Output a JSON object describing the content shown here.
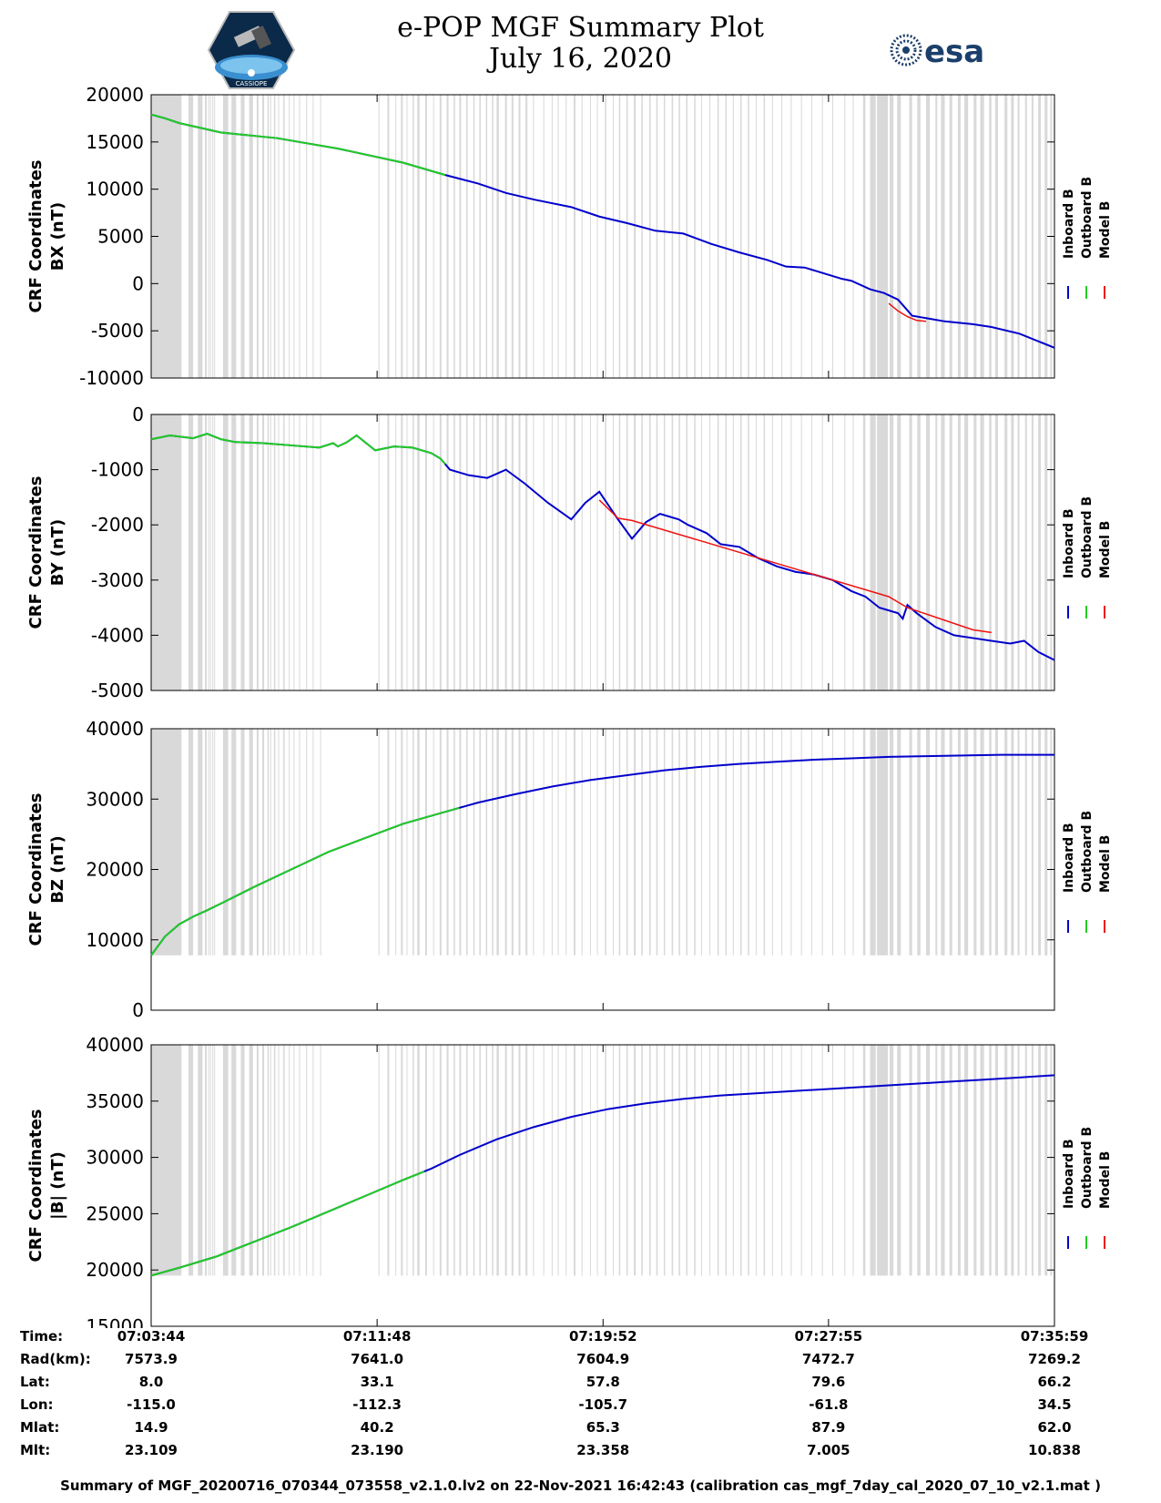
{
  "header": {
    "title_line1": "e-POP MGF Summary Plot",
    "title_line2": "July 16, 2020",
    "logo_right_text": "esa",
    "logo_left_text": "CASSIOPE"
  },
  "colors": {
    "inboard": "#0000cc",
    "outboard": "#22cc22",
    "model": "#ee1111",
    "gap": "#d9d9d9"
  },
  "legend": [
    "Inboard B",
    "Outboard B",
    "Model B"
  ],
  "time_span_sec": [
    0,
    1935
  ],
  "gap_intervals_sec": [
    [
      0,
      65
    ],
    [
      80,
      90
    ],
    [
      100,
      110
    ],
    [
      115,
      119
    ],
    [
      122,
      123
    ],
    [
      126,
      128
    ],
    [
      131,
      133
    ],
    [
      135,
      137
    ],
    [
      154,
      165
    ],
    [
      172,
      182
    ],
    [
      192,
      200
    ],
    [
      210,
      218
    ],
    [
      226,
      230
    ],
    [
      238,
      242
    ],
    [
      249,
      252
    ],
    [
      255,
      257
    ],
    [
      263,
      266
    ],
    [
      272,
      274
    ],
    [
      283,
      286
    ],
    [
      295,
      297
    ],
    [
      305,
      307
    ],
    [
      317,
      319
    ],
    [
      332,
      334
    ],
    [
      346,
      348
    ],
    [
      362,
      364
    ],
    [
      487,
      489
    ],
    [
      506,
      510
    ],
    [
      523,
      525
    ],
    [
      535,
      539
    ],
    [
      547,
      549
    ],
    [
      560,
      563
    ],
    [
      570,
      575
    ],
    [
      587,
      591
    ],
    [
      604,
      606
    ],
    [
      618,
      622
    ],
    [
      633,
      637
    ],
    [
      648,
      651
    ],
    [
      660,
      664
    ],
    [
      675,
      678
    ],
    [
      690,
      693
    ],
    [
      703,
      706
    ],
    [
      717,
      720
    ],
    [
      730,
      733
    ],
    [
      740,
      745
    ],
    [
      758,
      762
    ],
    [
      772,
      776
    ],
    [
      787,
      791
    ],
    [
      802,
      806
    ],
    [
      818,
      820
    ],
    [
      840,
      842
    ],
    [
      858,
      860
    ],
    [
      871,
      873
    ],
    [
      888,
      890
    ],
    [
      905,
      909
    ],
    [
      922,
      924
    ],
    [
      940,
      942
    ],
    [
      955,
      957
    ],
    [
      972,
      975
    ],
    [
      989,
      991
    ],
    [
      1002,
      1005
    ],
    [
      1018,
      1021
    ],
    [
      1034,
      1038
    ],
    [
      1050,
      1053
    ],
    [
      1067,
      1070
    ],
    [
      1082,
      1085
    ],
    [
      1098,
      1101
    ],
    [
      1115,
      1118
    ],
    [
      1130,
      1133
    ],
    [
      1146,
      1149
    ],
    [
      1163,
      1166
    ],
    [
      1178,
      1180
    ],
    [
      1196,
      1198
    ],
    [
      1213,
      1216
    ],
    [
      1230,
      1233
    ],
    [
      1246,
      1248
    ],
    [
      1262,
      1265
    ],
    [
      1278,
      1281
    ],
    [
      1295,
      1297
    ],
    [
      1312,
      1315
    ],
    [
      1330,
      1332
    ],
    [
      1350,
      1352
    ],
    [
      1370,
      1372
    ],
    [
      1392,
      1394
    ],
    [
      1414,
      1416
    ],
    [
      1437,
      1439
    ],
    [
      1459,
      1461
    ],
    [
      1485,
      1487
    ],
    [
      1503,
      1505
    ],
    [
      1525,
      1530
    ],
    [
      1540,
      1552
    ],
    [
      1555,
      1578
    ],
    [
      1582,
      1590
    ],
    [
      1598,
      1606
    ],
    [
      1624,
      1630
    ],
    [
      1641,
      1648
    ],
    [
      1660,
      1668
    ],
    [
      1680,
      1684
    ],
    [
      1692,
      1700
    ],
    [
      1710,
      1716
    ],
    [
      1728,
      1734
    ],
    [
      1742,
      1750
    ],
    [
      1762,
      1768
    ],
    [
      1776,
      1784
    ],
    [
      1795,
      1800
    ],
    [
      1808,
      1814
    ],
    [
      1828,
      1834
    ],
    [
      1842,
      1848
    ],
    [
      1856,
      1860
    ],
    [
      1872,
      1876
    ],
    [
      1886,
      1890
    ],
    [
      1900,
      1906
    ],
    [
      1914,
      1920
    ],
    [
      1926,
      1930
    ]
  ],
  "chart_data": [
    {
      "type": "line",
      "ylabel_line1": "CRF Coordinates",
      "ylabel_line2": "BX (nT)",
      "ylim": [
        -10000,
        20000
      ],
      "yticks": [
        20000,
        15000,
        10000,
        5000,
        0,
        -5000,
        -10000
      ],
      "outboard_until_sec": 630,
      "inboard_x": [
        0,
        30,
        60,
        150,
        270,
        400,
        540,
        630,
        700,
        760,
        820,
        900,
        960,
        1020,
        1080,
        1140,
        1200,
        1260,
        1320,
        1360,
        1400,
        1440,
        1480,
        1500,
        1540,
        1570,
        1600,
        1630,
        1700,
        1760,
        1800,
        1860,
        1935
      ],
      "inboard_y": [
        17900,
        17500,
        17000,
        16000,
        15400,
        14300,
        12800,
        11500,
        10600,
        9600,
        8900,
        8100,
        7100,
        6400,
        5600,
        5300,
        4200,
        3300,
        2500,
        1800,
        1700,
        1100,
        500,
        300,
        -600,
        -1000,
        -1700,
        -3400,
        -4000,
        -4300,
        -4600,
        -5300,
        -6800
      ],
      "model_x": [
        1580,
        1600,
        1620,
        1640,
        1660
      ],
      "model_y": [
        -2100,
        -2900,
        -3500,
        -3900,
        -4000
      ]
    },
    {
      "type": "line",
      "ylabel_line1": "CRF Coordinates",
      "ylabel_line2": "BY (nT)",
      "ylim": [
        -5000,
        0
      ],
      "yticks": [
        0,
        -1000,
        -2000,
        -3000,
        -4000,
        -5000
      ],
      "outboard_until_sec": 630,
      "inboard_x": [
        0,
        40,
        90,
        120,
        150,
        180,
        240,
        300,
        360,
        390,
        400,
        420,
        440,
        480,
        520,
        540,
        560,
        600,
        620,
        640,
        680,
        720,
        760,
        800,
        850,
        900,
        930,
        960,
        1000,
        1030,
        1060,
        1090,
        1110,
        1130,
        1150,
        1190,
        1220,
        1260,
        1300,
        1340,
        1380,
        1420,
        1460,
        1500,
        1530,
        1560,
        1580,
        1600,
        1610,
        1620,
        1640,
        1680,
        1720,
        1760,
        1800,
        1840,
        1870,
        1900,
        1935
      ],
      "inboard_y": [
        -450,
        -380,
        -430,
        -350,
        -450,
        -500,
        -520,
        -560,
        -600,
        -520,
        -580,
        -500,
        -380,
        -650,
        -580,
        -590,
        -600,
        -700,
        -800,
        -1000,
        -1100,
        -1150,
        -1000,
        -1250,
        -1600,
        -1900,
        -1600,
        -1400,
        -1900,
        -2250,
        -1950,
        -1800,
        -1850,
        -1900,
        -2000,
        -2150,
        -2350,
        -2400,
        -2600,
        -2750,
        -2850,
        -2900,
        -3000,
        -3200,
        -3300,
        -3500,
        -3550,
        -3600,
        -3700,
        -3450,
        -3600,
        -3850,
        -4000,
        -4050,
        -4100,
        -4150,
        -4100,
        -4300,
        -4450
      ],
      "model_x": [
        960,
        1000,
        1030,
        1580,
        1620,
        1760,
        1800
      ],
      "model_y": [
        -1550,
        -1880,
        -1920,
        -3300,
        -3500,
        -3900,
        -3950
      ]
    },
    {
      "type": "line",
      "ylabel_line1": "CRF Coordinates",
      "ylabel_line2": "BZ (nT)",
      "ylim": [
        0,
        40000
      ],
      "yticks": [
        40000,
        30000,
        20000,
        10000,
        0
      ],
      "outboard_until_sec": 660,
      "inboard_x": [
        0,
        30,
        60,
        90,
        120,
        160,
        220,
        300,
        380,
        460,
        540,
        620,
        700,
        780,
        860,
        940,
        1020,
        1100,
        1180,
        1260,
        1340,
        1420,
        1500,
        1580,
        1660,
        1740,
        1820,
        1935
      ],
      "inboard_y": [
        7800,
        10500,
        12200,
        13300,
        14200,
        15500,
        17500,
        20000,
        22500,
        24500,
        26500,
        28000,
        29500,
        30700,
        31800,
        32700,
        33400,
        34100,
        34600,
        35000,
        35300,
        35600,
        35800,
        36000,
        36100,
        36200,
        36300,
        36300
      ],
      "model_x": [],
      "model_y": []
    },
    {
      "type": "line",
      "ylabel_line1": "CRF Coordinates",
      "ylabel_line2": "|B| (nT)",
      "ylim": [
        15000,
        40000
      ],
      "yticks": [
        40000,
        35000,
        30000,
        25000,
        20000,
        15000
      ],
      "outboard_until_sec": 585,
      "inboard_x": [
        0,
        60,
        140,
        220,
        300,
        380,
        460,
        540,
        600,
        660,
        740,
        820,
        900,
        980,
        1060,
        1140,
        1220,
        1300,
        1380,
        1460,
        1540,
        1620,
        1700,
        1780,
        1860,
        1935
      ],
      "inboard_y": [
        19500,
        20200,
        21200,
        22500,
        23800,
        25200,
        26600,
        28000,
        29000,
        30200,
        31600,
        32700,
        33600,
        34300,
        34800,
        35200,
        35500,
        35700,
        35900,
        36100,
        36300,
        36500,
        36700,
        36900,
        37100,
        37300
      ],
      "model_x": [],
      "model_y": []
    }
  ],
  "x_ticks_sec": [
    0,
    484,
    968,
    1451,
    1935
  ],
  "info_table": {
    "labels": [
      "Time:",
      "Rad(km):",
      "Lat:",
      "Lon:",
      "Mlat:",
      "Mlt:"
    ],
    "columns": [
      [
        "07:03:44",
        "7573.9",
        "8.0",
        "-115.0",
        "14.9",
        "23.109"
      ],
      [
        "07:11:48",
        "7641.0",
        "33.1",
        "-112.3",
        "40.2",
        "23.190"
      ],
      [
        "07:19:52",
        "7604.9",
        "57.8",
        "-105.7",
        "65.3",
        "23.358"
      ],
      [
        "07:27:55",
        "7472.7",
        "79.6",
        "-61.8",
        "87.9",
        "7.005"
      ],
      [
        "07:35:59",
        "7269.2",
        "66.2",
        "34.5",
        "62.0",
        "10.838"
      ]
    ]
  },
  "footer": "Summary of MGF_20200716_070344_073558_v2.1.0.lv2 on 22-Nov-2021 16:42:43 (calibration cas_mgf_7day_cal_2020_07_10_v2.1.mat )"
}
